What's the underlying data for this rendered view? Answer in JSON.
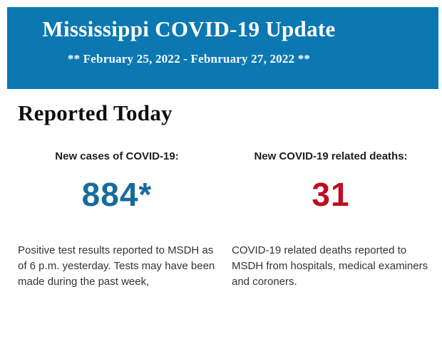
{
  "header": {
    "title": "Mississippi COVID-19 Update",
    "subtitle": "** February 25, 2022 - Febnruary 27, 2022 **",
    "bg_color": "#0b78b2",
    "text_color": "#ffffff"
  },
  "section": {
    "heading": "Reported Today"
  },
  "stats": [
    {
      "label": "New cases of COVID-19:",
      "value": "884*",
      "value_color": "#186a9e",
      "description": "Positive test results reported to MSDH as of 6 p.m. yesterday. Tests may have been made during the past week,"
    },
    {
      "label": "New COVID-19 related deaths:",
      "value": "31",
      "value_color": "#c10b1e",
      "description": "COVID-19 related deaths reported to MSDH from hospitals, medical examiners and coroners."
    }
  ]
}
